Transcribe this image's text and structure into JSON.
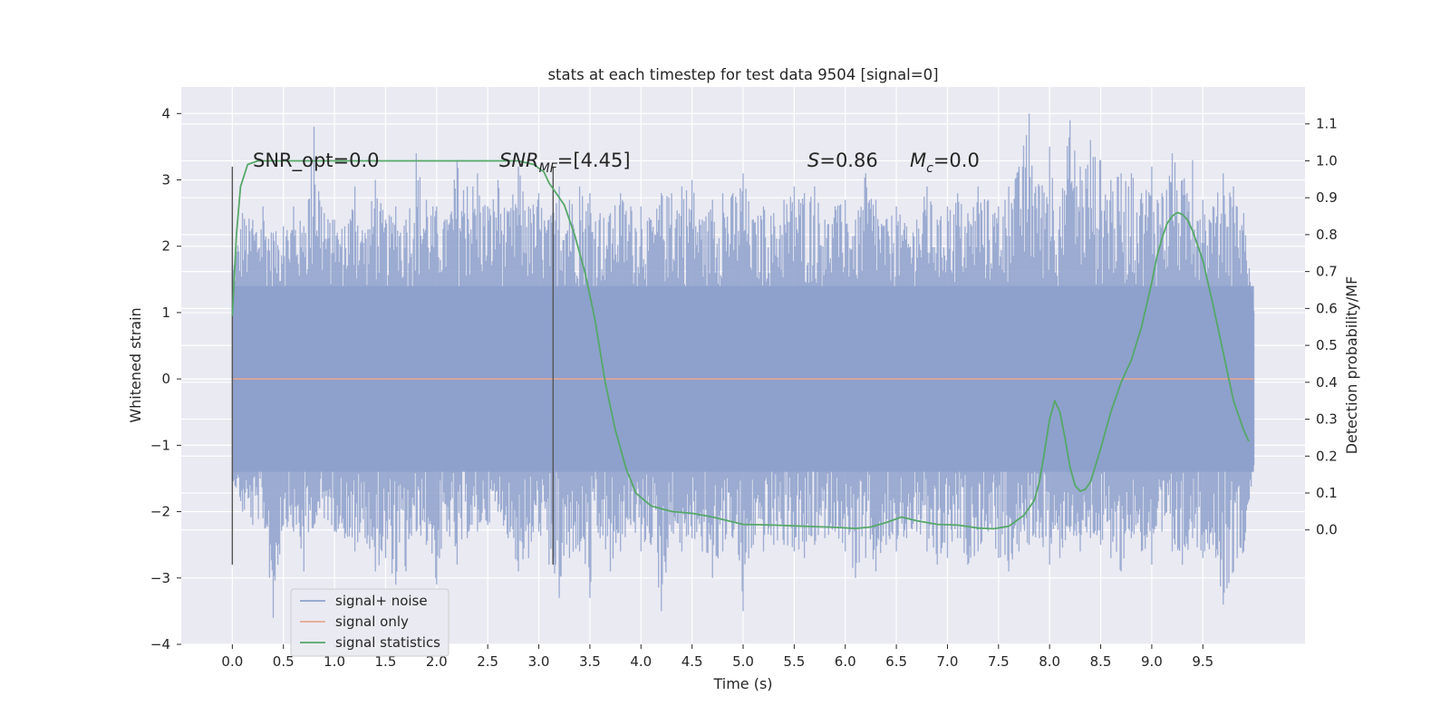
{
  "chart_data": {
    "type": "line",
    "title": "stats at each timestep for test data 9504 [signal=0]",
    "xlabel": "Time (s)",
    "ylabel": "Whitened strain",
    "y2label": "Detection probability/MF",
    "xlim": [
      -0.5,
      10.5
    ],
    "ylim": [
      -4,
      4.4
    ],
    "y2lim": [
      -0.31,
      1.2
    ],
    "xticks": [
      "0.0",
      "0.5",
      "1.0",
      "1.5",
      "2.0",
      "2.5",
      "3.0",
      "3.5",
      "4.0",
      "4.5",
      "5.0",
      "5.5",
      "6.0",
      "6.5",
      "7.0",
      "7.5",
      "8.0",
      "8.5",
      "9.0",
      "9.5"
    ],
    "yticks": [
      "4",
      "3",
      "2",
      "1",
      "0",
      "−1",
      "−2",
      "−3",
      "−4"
    ],
    "y2ticks": [
      "1.1",
      "1.0",
      "0.9",
      "0.8",
      "0.7",
      "0.6",
      "0.5",
      "0.4",
      "0.3",
      "0.2",
      "0.1",
      "0.0"
    ],
    "grid": true,
    "legend_position": "lower-left",
    "annotations": {
      "snr_opt": "SNR_opt=0.0",
      "snr_mf_main": "SNR",
      "snr_mf_sub": "MF",
      "snr_mf_value": "=[4.45]",
      "s_main": "S",
      "s_value": "=0.86",
      "mc_main": "M",
      "mc_sub": "c",
      "mc_value": "=0.0"
    },
    "markers": [
      {
        "x": 0.0,
        "y_range": [
          -2.8,
          3.2
        ]
      },
      {
        "x": 3.14,
        "y_range": [
          -2.8,
          3.2
        ]
      }
    ],
    "series": [
      {
        "name": "signal+ noise",
        "color": "#8da0cb",
        "x_range": [
          0,
          10
        ],
        "envelope_upper": [
          1.7,
          2.5,
          2.4,
          2.6,
          2.2,
          2.3,
          2.6,
          2.3,
          3.8,
          2.5,
          2.4,
          2.3,
          2.9,
          2.2,
          3.0,
          2.4,
          2.6,
          2.4,
          3.4,
          2.7,
          2.6,
          2.4,
          3.3,
          2.9,
          3.1,
          2.6,
          3.0,
          2.5,
          3.2,
          2.6,
          2.8,
          2.4,
          2.9,
          2.7,
          2.9,
          2.8,
          2.5,
          2.5,
          2.8,
          2.6,
          2.6,
          2.4,
          2.8,
          2.8,
          2.9,
          3.0,
          2.4,
          2.7,
          2.8,
          2.8,
          3.1,
          2.4,
          2.6,
          2.5,
          2.7,
          2.9,
          2.8,
          2.9,
          2.4,
          2.6,
          2.7,
          2.4,
          3.1,
          2.7,
          2.4,
          2.6,
          2.3,
          2.4,
          2.9,
          2.4,
          2.6,
          2.8,
          2.5,
          2.9,
          2.7,
          2.6,
          2.9,
          3.2,
          4.0,
          2.9,
          3.5,
          2.6,
          3.9,
          3.2,
          3.6,
          3.3,
          3.0,
          3.1,
          3.1,
          2.8,
          3.2,
          2.8,
          3.4,
          3.0,
          3.3,
          2.7,
          2.6,
          3.1,
          2.9,
          2.5,
          1.0
        ],
        "envelope_lower": [
          -1.5,
          -2.0,
          -2.2,
          -2.1,
          -3.6,
          -2.2,
          -2.3,
          -2.9,
          -2.2,
          -2.1,
          -2.3,
          -2.4,
          -2.6,
          -2.4,
          -2.9,
          -2.7,
          -3.1,
          -2.9,
          -2.3,
          -2.5,
          -3.1,
          -2.3,
          -2.8,
          -2.4,
          -2.3,
          -2.2,
          -2.0,
          -2.4,
          -2.9,
          -2.7,
          -2.3,
          -2.8,
          -3.3,
          -2.7,
          -2.6,
          -3.3,
          -2.4,
          -2.9,
          -2.6,
          -2.2,
          -2.6,
          -2.5,
          -3.5,
          -2.3,
          -2.6,
          -2.4,
          -2.6,
          -3.0,
          -2.6,
          -2.4,
          -3.5,
          -2.5,
          -2.6,
          -2.5,
          -2.5,
          -2.6,
          -2.7,
          -2.5,
          -2.4,
          -2.3,
          -2.6,
          -3.0,
          -2.7,
          -2.9,
          -2.5,
          -2.6,
          -2.4,
          -2.3,
          -2.6,
          -2.8,
          -2.7,
          -2.4,
          -2.8,
          -2.6,
          -2.3,
          -2.7,
          -2.9,
          -2.6,
          -2.5,
          -2.4,
          -2.8,
          -2.7,
          -2.3,
          -2.6,
          -2.4,
          -2.5,
          -2.7,
          -2.9,
          -2.4,
          -2.6,
          -2.8,
          -2.3,
          -2.6,
          -2.8,
          -2.4,
          -2.7,
          -2.5,
          -3.4,
          -2.9,
          -2.6,
          -1.3
        ]
      },
      {
        "name": "signal only",
        "color": "#e5a78f",
        "x": [
          0,
          10
        ],
        "y": [
          0,
          0
        ]
      },
      {
        "name": "signal statistics",
        "color": "#55a868",
        "axis": "right",
        "x": [
          0.0,
          0.04,
          0.08,
          0.15,
          0.25,
          0.4,
          1.0,
          2.0,
          2.8,
          2.95,
          3.05,
          3.1,
          3.15,
          3.25,
          3.35,
          3.45,
          3.55,
          3.65,
          3.75,
          3.85,
          3.95,
          4.1,
          4.3,
          4.5,
          4.7,
          5.0,
          5.3,
          5.6,
          5.9,
          6.1,
          6.25,
          6.4,
          6.55,
          6.7,
          6.9,
          7.1,
          7.3,
          7.45,
          7.6,
          7.75,
          7.85,
          7.9,
          7.95,
          8.0,
          8.05,
          8.1,
          8.15,
          8.2,
          8.25,
          8.3,
          8.35,
          8.4,
          8.5,
          8.6,
          8.7,
          8.8,
          8.9,
          9.0,
          9.05,
          9.1,
          9.15,
          9.2,
          9.25,
          9.3,
          9.35,
          9.4,
          9.5,
          9.6,
          9.7,
          9.8,
          9.9,
          9.95
        ],
        "y": [
          0.58,
          0.8,
          0.93,
          0.99,
          1.0,
          1.0,
          1.0,
          1.0,
          1.0,
          0.99,
          0.97,
          0.94,
          0.92,
          0.88,
          0.8,
          0.7,
          0.57,
          0.4,
          0.27,
          0.17,
          0.1,
          0.065,
          0.05,
          0.045,
          0.035,
          0.015,
          0.013,
          0.01,
          0.007,
          0.004,
          0.008,
          0.02,
          0.035,
          0.025,
          0.015,
          0.013,
          0.005,
          0.003,
          0.01,
          0.04,
          0.08,
          0.13,
          0.21,
          0.3,
          0.35,
          0.32,
          0.25,
          0.17,
          0.12,
          0.105,
          0.11,
          0.13,
          0.22,
          0.32,
          0.4,
          0.46,
          0.55,
          0.67,
          0.74,
          0.79,
          0.83,
          0.85,
          0.86,
          0.855,
          0.84,
          0.81,
          0.73,
          0.61,
          0.48,
          0.35,
          0.27,
          0.24
        ]
      }
    ]
  }
}
